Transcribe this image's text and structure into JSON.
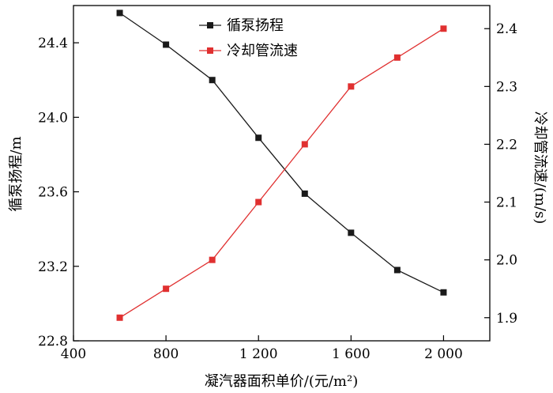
{
  "chart_data": {
    "type": "line",
    "x": [
      600,
      800,
      1000,
      1200,
      1400,
      1600,
      1800,
      2000
    ],
    "xlabel": "凝汽器面积单价/(元/m²)",
    "xlim": [
      400,
      2200
    ],
    "xticks": [
      400,
      800,
      1200,
      1600,
      2000
    ],
    "xtick_labels": [
      "400",
      "800",
      "1 200",
      "1 600",
      "2 000"
    ],
    "y_left": {
      "label": "循泵扬程/m",
      "lim": [
        22.8,
        24.6
      ],
      "ticks": [
        22.8,
        23.2,
        23.6,
        24.0,
        24.4
      ],
      "tick_labels": [
        "22.8",
        "23.2",
        "23.6",
        "24.0",
        "24.4"
      ]
    },
    "y_right": {
      "label": "冷却管流速/(m/s)",
      "lim": [
        1.86,
        2.44
      ],
      "ticks": [
        1.9,
        2.0,
        2.1,
        2.2,
        2.3,
        2.4
      ],
      "tick_labels": [
        "1.9",
        "2.0",
        "2.1",
        "2.2",
        "2.3",
        "2.4"
      ]
    },
    "series": [
      {
        "name": "循泵扬程",
        "axis": "left",
        "color": "#1a1a1a",
        "marker": "square",
        "values": [
          24.56,
          24.39,
          24.2,
          23.89,
          23.59,
          23.38,
          23.18,
          23.06
        ]
      },
      {
        "name": "冷却管流速",
        "axis": "right",
        "color": "#e03030",
        "marker": "square",
        "values": [
          1.9,
          1.95,
          2.0,
          2.1,
          2.2,
          2.3,
          2.35,
          2.4
        ]
      }
    ],
    "legend_position": "top-center",
    "grid": false
  }
}
